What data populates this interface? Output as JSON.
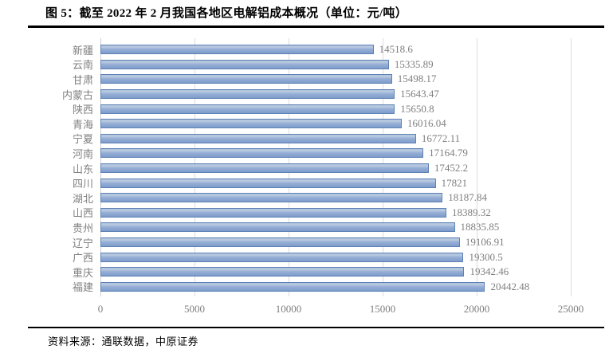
{
  "figure": {
    "title": "图 5：截至 2022 年 2 月我国各地区电解铝成本概况（单位：元/吨）",
    "source": "资料来源：通联数据，中原证券"
  },
  "chart_data": {
    "type": "bar",
    "orientation": "horizontal",
    "title": "截至 2022 年 2 月我国各地区电解铝成本概况",
    "unit": "元/吨",
    "categories": [
      "新疆",
      "云南",
      "甘肃",
      "内蒙古",
      "陕西",
      "青海",
      "宁夏",
      "河南",
      "山东",
      "四川",
      "湖北",
      "山西",
      "贵州",
      "辽宁",
      "广西",
      "重庆",
      "福建"
    ],
    "values": [
      14518.6,
      15335.89,
      15498.17,
      15643.47,
      15650.8,
      16016.04,
      16772.11,
      17164.79,
      17452.2,
      17821,
      18187.84,
      18389.32,
      18835.85,
      19106.91,
      19300.5,
      19342.46,
      20442.48
    ],
    "value_labels": [
      "14518.6",
      "15335.89",
      "15498.17",
      "15643.47",
      "15650.8",
      "16016.04",
      "16772.11",
      "17164.79",
      "17452.2",
      "17821",
      "18187.84",
      "18389.32",
      "18835.85",
      "19106.91",
      "19300.5",
      "19342.46",
      "20442.48"
    ],
    "xlim": [
      0,
      25000
    ],
    "x_ticks": [
      0,
      5000,
      10000,
      15000,
      20000,
      25000
    ],
    "x_tick_labels": [
      "0",
      "5000",
      "10000",
      "15000",
      "20000",
      "25000"
    ],
    "grid": true,
    "legend_position": "none",
    "bar_fill": "#93ACD4",
    "bar_border": "#5E82B6",
    "gridline_color": "#DCDCDC",
    "axis_label_color": "#7F7F7F"
  }
}
